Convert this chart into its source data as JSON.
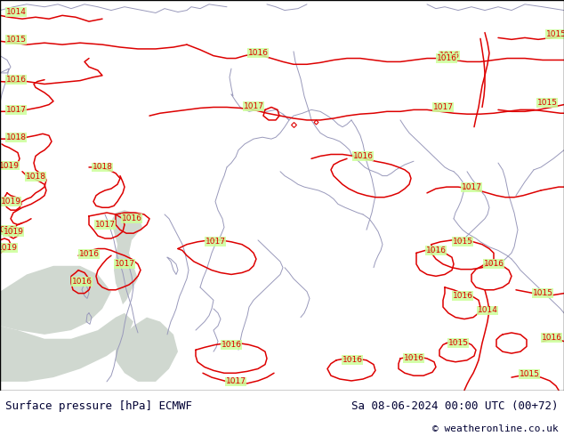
{
  "title_left": "Surface pressure [hPa] ECMWF",
  "title_right": "Sa 08-06-2024 00:00 UTC (00+72)",
  "copyright": "© weatheronline.co.uk",
  "bg_color": "#ccff99",
  "sea_color": "#d0d8d0",
  "border_color": "#000000",
  "text_color": "#000033",
  "contour_color": "#dd0000",
  "coast_color": "#9999bb",
  "font_size_title": 9,
  "font_size_copyright": 8,
  "fig_width": 6.34,
  "fig_height": 4.9,
  "dpi": 100,
  "coast_lw": 0.7,
  "isobar_lw": 1.1,
  "label_fontsize": 6.5
}
